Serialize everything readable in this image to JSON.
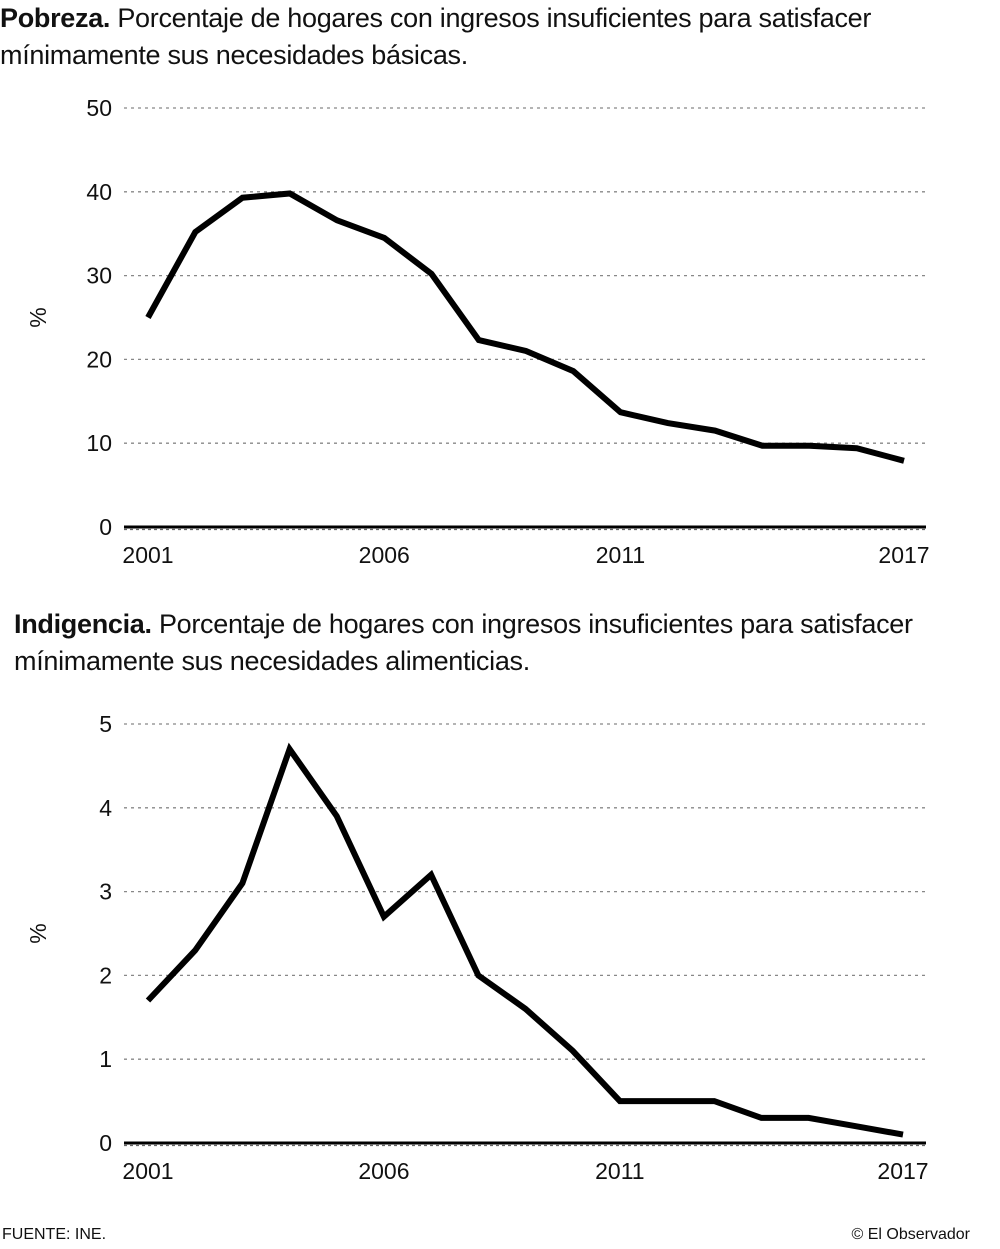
{
  "chart_data": [
    {
      "type": "line",
      "title": "Pobreza.",
      "subtitle": "Porcentaje de hogares con ingresos insuficientes para satisfacer mínimamente sus necesidades básicas.",
      "xlabel": "",
      "ylabel": "%",
      "xlim": [
        2001,
        2017
      ],
      "ylim": [
        0,
        50
      ],
      "yticks": [
        0,
        10,
        20,
        30,
        40,
        50
      ],
      "xticks": [
        2001,
        2006,
        2011,
        2017
      ],
      "grid": true,
      "x": [
        2001,
        2002,
        2003,
        2004,
        2005,
        2006,
        2007,
        2008,
        2009,
        2010,
        2011,
        2012,
        2013,
        2014,
        2015,
        2016,
        2017
      ],
      "series": [
        {
          "values": [
            25,
            35.2,
            39.3,
            39.8,
            36.6,
            34.5,
            30.2,
            22.3,
            21.0,
            18.6,
            13.7,
            12.4,
            11.5,
            9.7,
            9.7,
            9.4,
            7.9
          ]
        }
      ],
      "color": "#000000"
    },
    {
      "type": "line",
      "title": "Indigencia.",
      "subtitle": "Porcentaje de hogares con ingresos insuficientes para satisfacer mínimamente sus necesidades alimenticias.",
      "xlabel": "",
      "ylabel": "%",
      "xlim": [
        2001,
        2017
      ],
      "ylim": [
        0,
        5
      ],
      "yticks": [
        0,
        1,
        2,
        3,
        4,
        5
      ],
      "xticks": [
        2001,
        2006,
        2011,
        2017
      ],
      "grid": true,
      "x": [
        2001,
        2002,
        2003,
        2004,
        2005,
        2006,
        2007,
        2008,
        2009,
        2010,
        2011,
        2012,
        2013,
        2014,
        2015,
        2016,
        2017
      ],
      "series": [
        {
          "values": [
            1.7,
            2.3,
            3.1,
            4.7,
            3.9,
            2.7,
            3.2,
            2.0,
            1.6,
            1.1,
            0.5,
            0.5,
            0.5,
            0.3,
            0.3,
            0.2,
            0.1
          ]
        }
      ],
      "color": "#000000"
    }
  ],
  "footer": {
    "source": "FUENTE: INE.",
    "credit": "© El Observador"
  }
}
